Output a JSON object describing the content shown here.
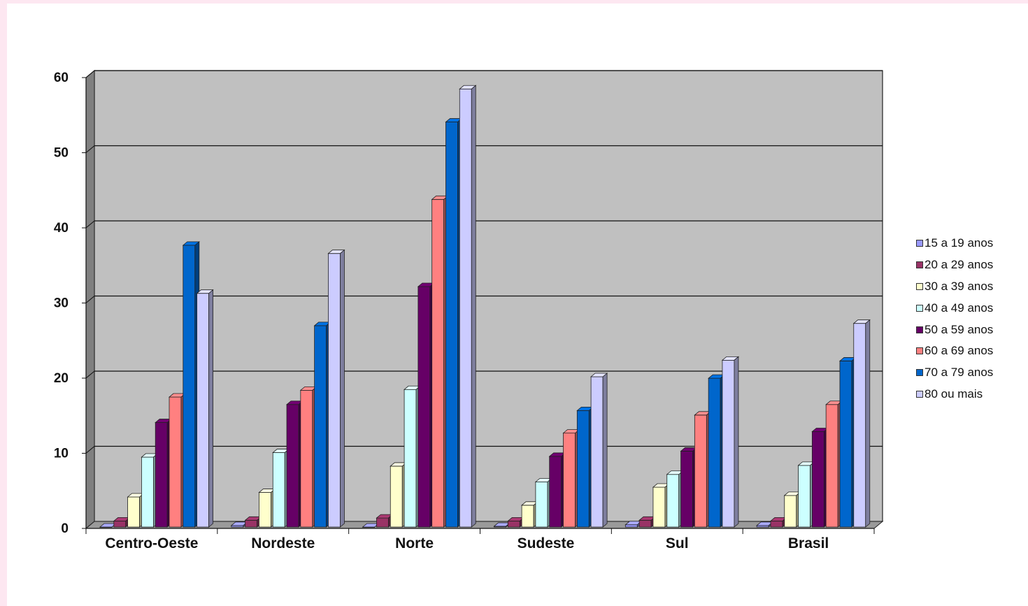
{
  "chart_data": {
    "type": "bar",
    "title": "",
    "xlabel": "",
    "ylabel": "",
    "ylim": [
      0,
      60
    ],
    "yticks": [
      "0",
      "10",
      "20",
      "30",
      "40",
      "50",
      "60"
    ],
    "grid": true,
    "legend_position": "right",
    "categories": [
      "Centro-Oeste",
      "Nordeste",
      "Norte",
      "Sudeste",
      "Sul",
      "Brasil"
    ],
    "series": [
      {
        "name": "15 a 19 anos",
        "color": "#9999ff",
        "values": [
          0,
          0.2,
          0,
          0.1,
          0.3,
          0.2
        ]
      },
      {
        "name": "20 a 29 anos",
        "color": "#993366",
        "values": [
          0.8,
          0.9,
          1.2,
          0.8,
          0.9,
          0.8
        ]
      },
      {
        "name": "30 a 39 anos",
        "color": "#ffffcc",
        "values": [
          4.0,
          4.6,
          8.1,
          2.9,
          5.3,
          4.2
        ]
      },
      {
        "name": "40 a 49 anos",
        "color": "#ccffff",
        "values": [
          9.3,
          9.9,
          18.3,
          6.0,
          7.0,
          8.2
        ]
      },
      {
        "name": "50 a 59 anos",
        "color": "#660066",
        "values": [
          13.9,
          16.3,
          32.0,
          9.4,
          10.1,
          12.7
        ]
      },
      {
        "name": "60 a 69 anos",
        "color": "#ff8080",
        "values": [
          17.3,
          18.2,
          43.6,
          12.5,
          14.9,
          16.3
        ]
      },
      {
        "name": "70 a 79 anos",
        "color": "#0066cc",
        "values": [
          37.5,
          26.8,
          53.9,
          15.5,
          19.8,
          22.1
        ]
      },
      {
        "name": "80 ou mais",
        "color": "#ccccff",
        "values": [
          31.1,
          36.4,
          58.3,
          20.0,
          22.2,
          27.1
        ]
      }
    ]
  }
}
